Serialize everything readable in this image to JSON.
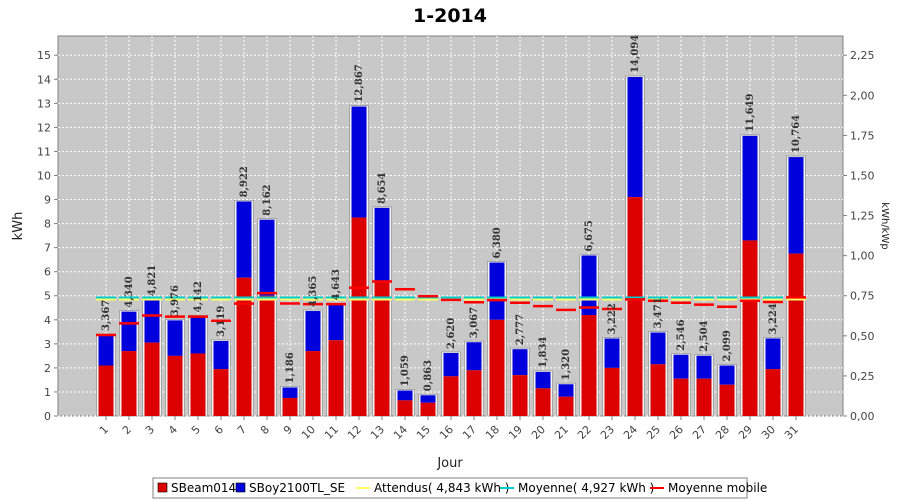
{
  "chart_data": {
    "type": "bar",
    "title": "1-2014",
    "xlabel": "Jour",
    "ylabel": "kWh",
    "ylabel_right": "kWh/kWp",
    "ylim": [
      0,
      15.8
    ],
    "ylim_right": [
      0,
      2.37
    ],
    "yticks": [
      0,
      1,
      2,
      3,
      4,
      5,
      6,
      7,
      8,
      9,
      10,
      11,
      12,
      13,
      14,
      15
    ],
    "yticks_right": [
      "0,00",
      "0,25",
      "0,50",
      "0,75",
      "1,00",
      "1,25",
      "1,50",
      "1,75",
      "2,00",
      "2,25"
    ],
    "yticks_right_values": [
      0,
      0.25,
      0.5,
      0.75,
      1.0,
      1.25,
      1.5,
      1.75,
      2.0,
      2.25
    ],
    "grid": true,
    "legend_position": "bottom",
    "categories": [
      "1",
      "2",
      "3",
      "4",
      "5",
      "6",
      "7",
      "8",
      "9",
      "10",
      "11",
      "12",
      "13",
      "14",
      "15",
      "16",
      "17",
      "18",
      "19",
      "20",
      "21",
      "22",
      "23",
      "24",
      "25",
      "26",
      "27",
      "28",
      "29",
      "30",
      "31"
    ],
    "series": [
      {
        "name": "SBeam014",
        "color": "#dd0000",
        "values": [
          2.1,
          2.7,
          3.05,
          2.5,
          2.6,
          1.95,
          5.75,
          5.0,
          0.75,
          2.7,
          3.15,
          8.25,
          5.6,
          0.65,
          0.55,
          1.65,
          1.9,
          4.0,
          1.7,
          1.15,
          0.8,
          4.2,
          2.0,
          9.1,
          2.15,
          1.55,
          1.55,
          1.3,
          7.3,
          1.95,
          6.75
        ]
      },
      {
        "name": "SBoy2100TL_SE",
        "color": "#0000dd",
        "values": [
          1.267,
          1.64,
          1.771,
          1.476,
          1.542,
          1.169,
          3.172,
          3.162,
          0.436,
          1.665,
          1.493,
          4.617,
          3.054,
          0.409,
          0.313,
          0.97,
          1.167,
          2.38,
          1.077,
          0.684,
          0.52,
          2.475,
          1.222,
          4.994,
          1.321,
          0.996,
          0.954,
          0.799,
          4.349,
          1.274,
          4.014
        ]
      }
    ],
    "totals": [
      "3,367",
      "4,340",
      "4,821",
      "3,976",
      "4,142",
      "3,119",
      "8,922",
      "8,162",
      "1,186",
      "4,365",
      "4,643",
      "12,867",
      "8,654",
      "1,059",
      "0,863",
      "2,620",
      "3,067",
      "6,380",
      "2,777",
      "1,834",
      "1,320",
      "6,675",
      "3,222",
      "14,094",
      "3,471",
      "2,546",
      "2,504",
      "2,099",
      "11,649",
      "3,224",
      "10,764"
    ],
    "attendu": {
      "name": "Attendus( 4,843 kWh )",
      "value": 4.843,
      "color": "#ffff66"
    },
    "moyenne": {
      "name": "Moyenne( 4,927 kWh )",
      "value": 4.927,
      "color": "#00cccc"
    },
    "moyenne_mobile": {
      "name": "Moyenne mobile",
      "color": "#ff0000",
      "values": [
        3.367,
        3.85,
        4.18,
        4.13,
        4.13,
        3.96,
        4.67,
        5.11,
        4.68,
        4.65,
        4.65,
        5.33,
        5.59,
        5.27,
        4.98,
        4.83,
        4.73,
        4.82,
        4.71,
        4.57,
        4.41,
        4.51,
        4.45,
        4.85,
        4.79,
        4.71,
        4.63,
        4.54,
        4.79,
        4.74,
        4.93
      ]
    }
  }
}
